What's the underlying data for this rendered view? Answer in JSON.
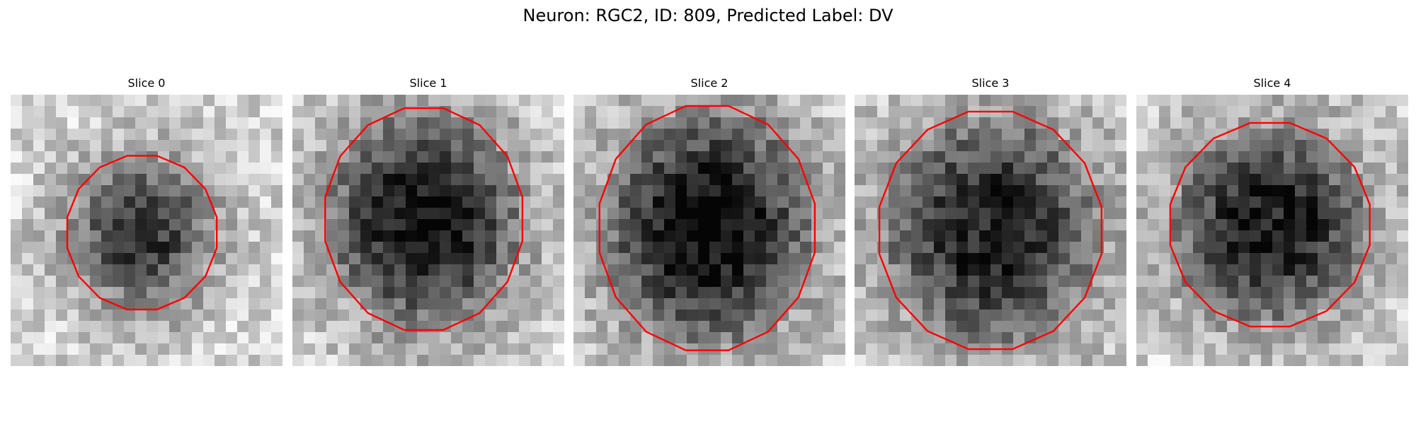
{
  "figure": {
    "title": "Neuron: RGC2, ID: 809, Predicted Label: DV"
  },
  "panels": [
    {
      "title": "Slice 0"
    },
    {
      "title": "Slice 1"
    },
    {
      "title": "Slice 2"
    },
    {
      "title": "Slice 3"
    },
    {
      "title": "Slice 4"
    }
  ],
  "colors": {
    "contour": "#ff0000",
    "colormap": "grayscale"
  }
}
